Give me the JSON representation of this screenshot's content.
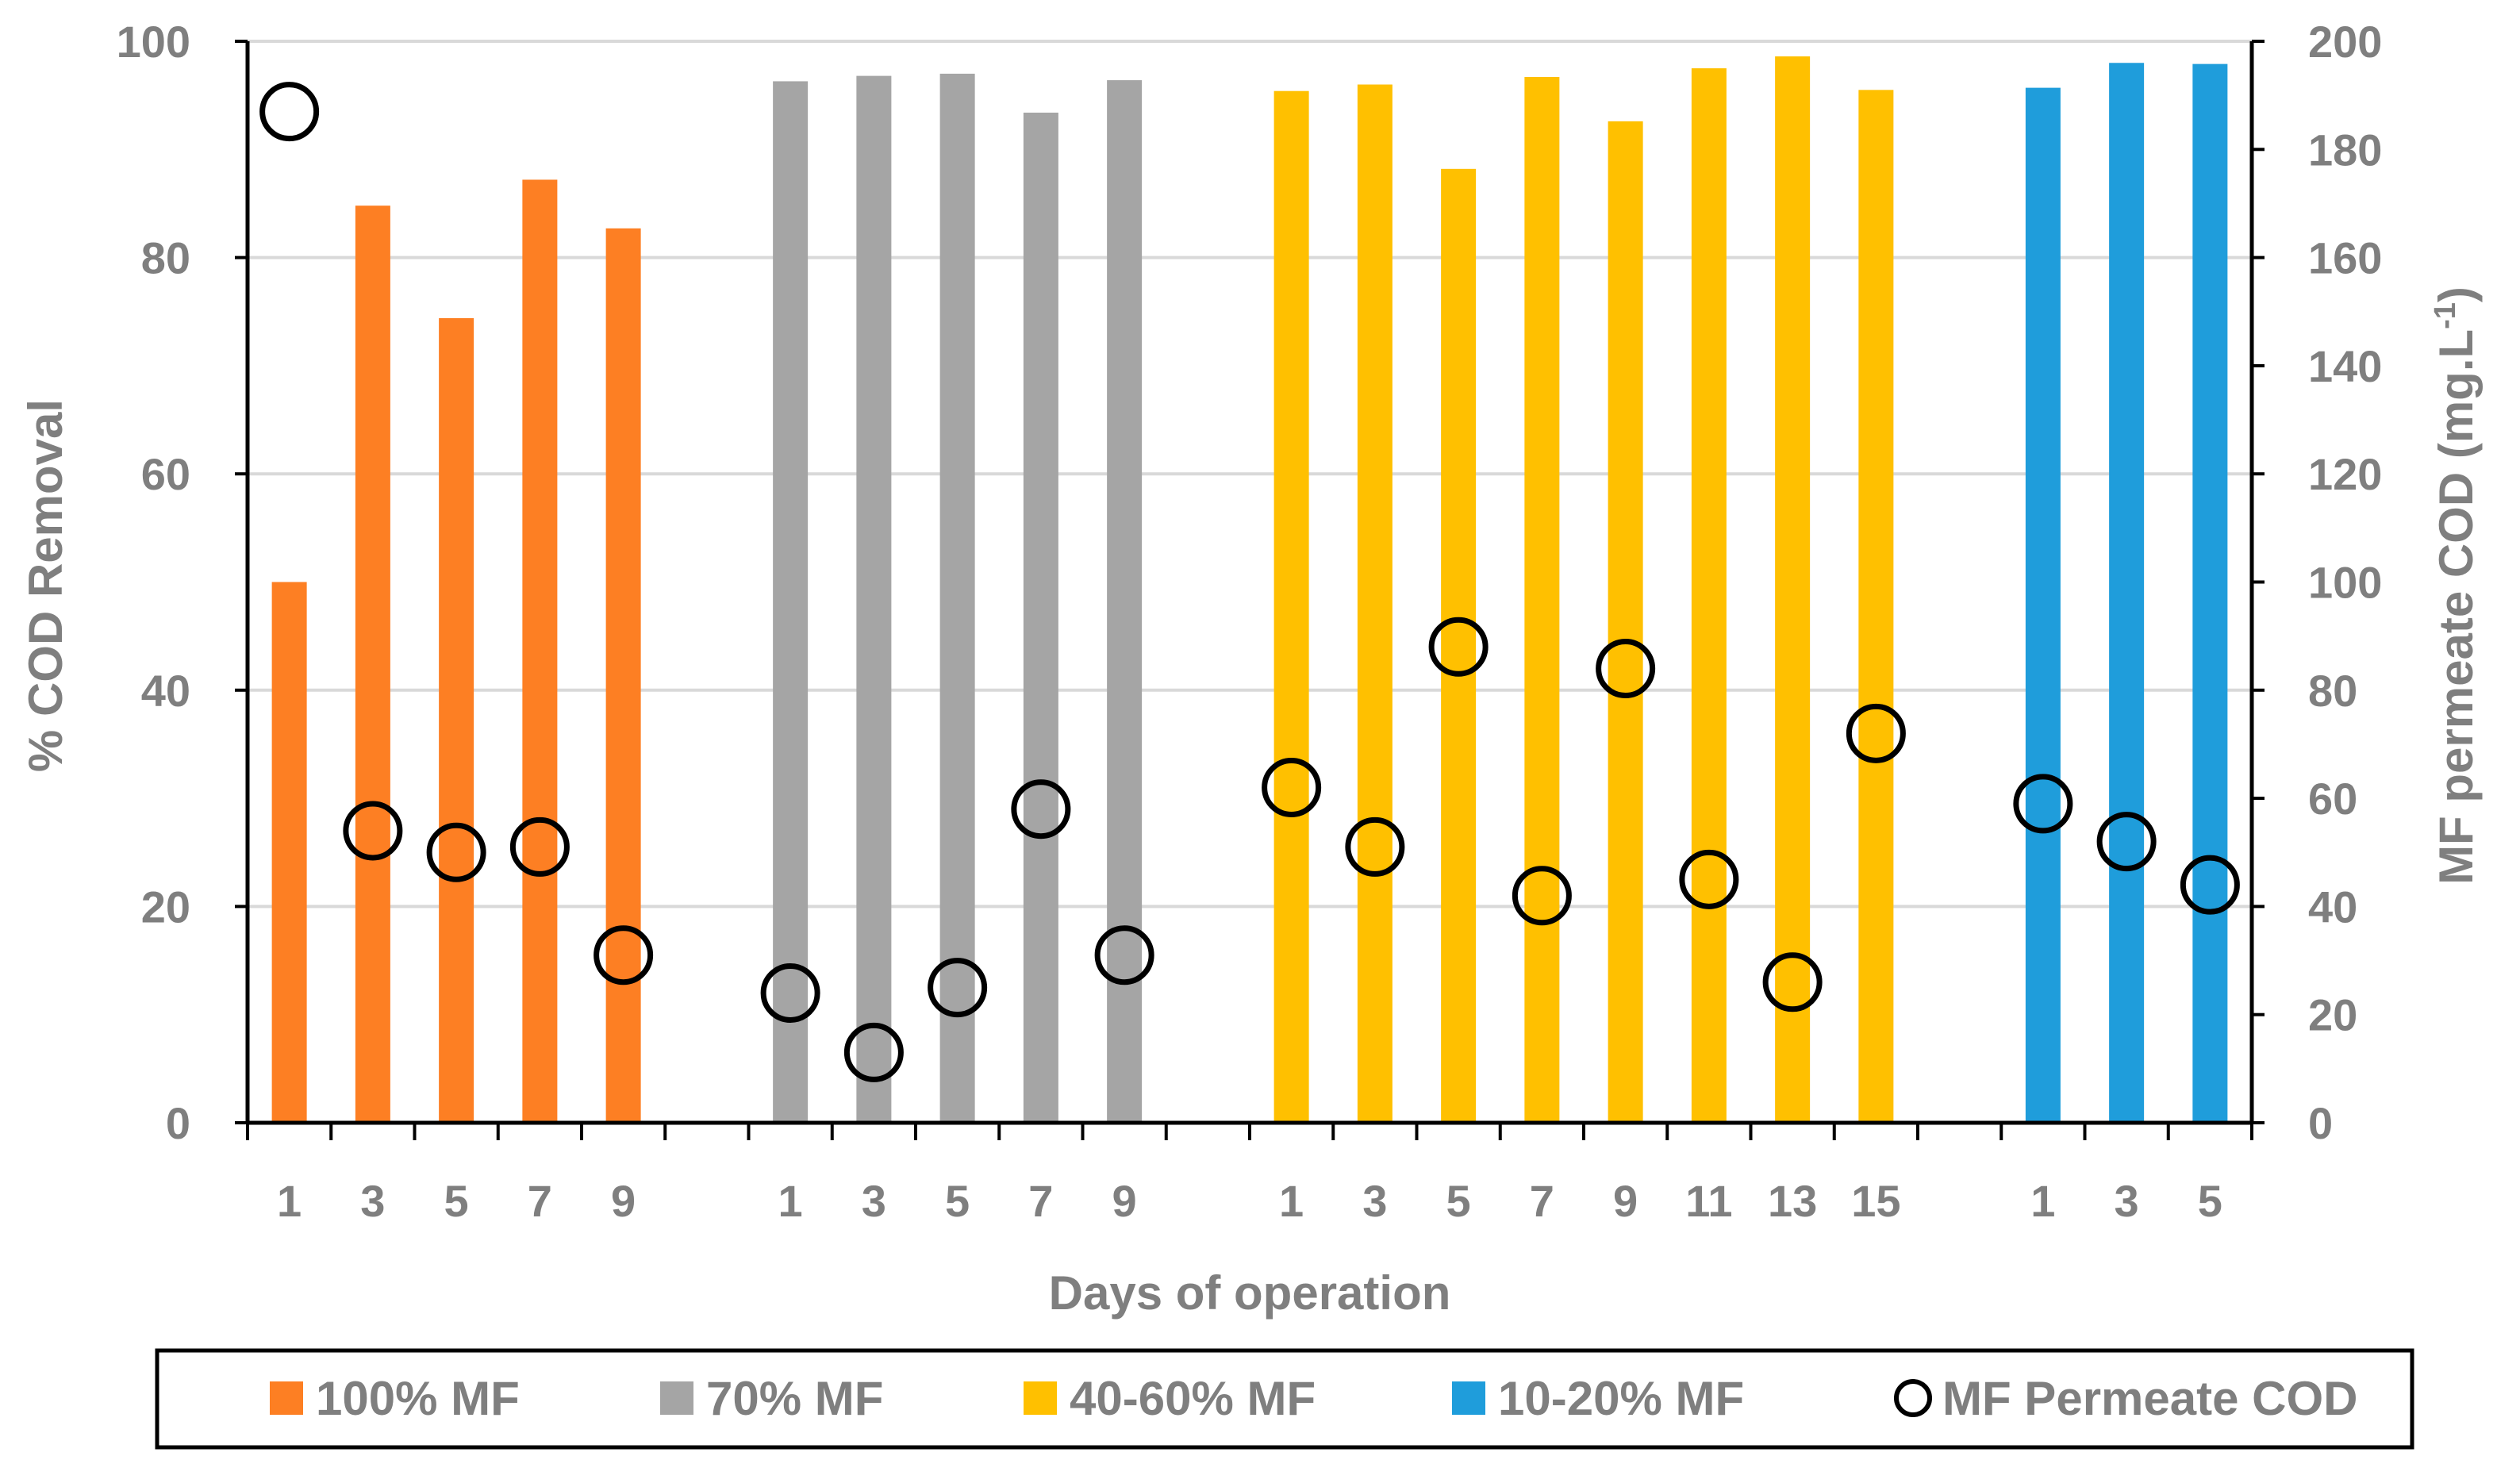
{
  "chart_data": {
    "type": "bar",
    "xlabel": "Days of operation",
    "ylabel": "% COD Removal",
    "y2label_main": "MF permeate COD (mg.L",
    "y2label_sup": "-1",
    "y2label_close": ")",
    "ylim": [
      0,
      100
    ],
    "y2lim": [
      0,
      200
    ],
    "yticks": [
      0,
      20,
      40,
      60,
      80,
      100
    ],
    "y2ticks": [
      0,
      20,
      40,
      60,
      80,
      100,
      120,
      140,
      160,
      180,
      200
    ],
    "grid": true,
    "legend_position": "bottom",
    "categories": [
      "1",
      "3",
      "5",
      "7",
      "9",
      "",
      "1",
      "3",
      "5",
      "7",
      "9",
      "",
      "1",
      "3",
      "5",
      "7",
      "9",
      "11",
      "13",
      "15",
      "",
      "1",
      "3",
      "5"
    ],
    "series": [
      {
        "name": "100% MF",
        "type": "bar",
        "axis": "left",
        "color": "#fd7f23",
        "values": [
          50,
          84.8,
          74.4,
          87.2,
          82.7,
          null,
          null,
          null,
          null,
          null,
          null,
          null,
          null,
          null,
          null,
          null,
          null,
          null,
          null,
          null,
          null,
          null,
          null,
          null
        ]
      },
      {
        "name": "70% MF",
        "type": "bar",
        "axis": "left",
        "color": "#a5a5a5",
        "values": [
          null,
          null,
          null,
          null,
          null,
          null,
          96.3,
          96.8,
          97,
          93.4,
          96.4,
          null,
          null,
          null,
          null,
          null,
          null,
          null,
          null,
          null,
          null,
          null,
          null,
          null
        ]
      },
      {
        "name": "40-60% MF",
        "type": "bar",
        "axis": "left",
        "color": "#ffc000",
        "values": [
          null,
          null,
          null,
          null,
          null,
          null,
          null,
          null,
          null,
          null,
          null,
          null,
          95.4,
          96,
          88.2,
          96.7,
          92.6,
          97.5,
          98.6,
          95.5,
          null,
          null,
          null,
          null
        ]
      },
      {
        "name": "10-20% MF",
        "type": "bar",
        "axis": "left",
        "color": "#1f9ddb",
        "values": [
          null,
          null,
          null,
          null,
          null,
          null,
          null,
          null,
          null,
          null,
          null,
          null,
          null,
          null,
          null,
          null,
          null,
          null,
          null,
          null,
          null,
          95.7,
          98,
          97.9
        ]
      },
      {
        "name": "MF Permeate COD",
        "type": "scatter",
        "axis": "right",
        "color": "#000000",
        "values": [
          187,
          54,
          50,
          51,
          31,
          null,
          24,
          13,
          25,
          58,
          31,
          null,
          62,
          51,
          88,
          42,
          84,
          45,
          26,
          72,
          null,
          59,
          52,
          44
        ]
      }
    ]
  }
}
